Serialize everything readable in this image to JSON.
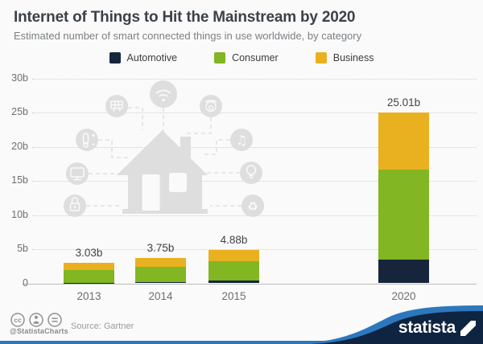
{
  "header": {
    "title": "Internet of Things to Hit the Mainstream by 2020",
    "subtitle": "Estimated number of smart connected things in use worldwide, by category"
  },
  "legend": {
    "items": [
      {
        "label": "Automotive",
        "color": "#16253c"
      },
      {
        "label": "Consumer",
        "color": "#82b622"
      },
      {
        "label": "Business",
        "color": "#e9b120"
      }
    ]
  },
  "chart_data": {
    "type": "bar",
    "stacked": true,
    "title": "Internet of Things to Hit the Mainstream by 2020",
    "unit": "billions of connected things",
    "categories": [
      "2013",
      "2014",
      "2015",
      "2020"
    ],
    "series": [
      {
        "name": "Automotive",
        "color": "#16253c",
        "values": [
          0.1,
          0.19,
          0.37,
          3.51
        ]
      },
      {
        "name": "Consumer",
        "color": "#82b622",
        "values": [
          1.84,
          2.24,
          2.87,
          13.17
        ]
      },
      {
        "name": "Business",
        "color": "#e9b120",
        "values": [
          1.09,
          1.32,
          1.64,
          8.33
        ]
      }
    ],
    "totals": [
      3.03,
      3.75,
      4.88,
      25.01
    ],
    "total_labels": [
      "3.03b",
      "3.75b",
      "4.88b",
      "25.01b"
    ],
    "y_ticks": [
      {
        "value": 30,
        "label": "30b"
      },
      {
        "value": 25,
        "label": "25b"
      },
      {
        "value": 20,
        "label": "20b"
      },
      {
        "value": 15,
        "label": "15b"
      },
      {
        "value": 10,
        "label": "10b"
      },
      {
        "value": 5,
        "label": "5b"
      },
      {
        "value": 0,
        "label": "0"
      }
    ],
    "ylim": [
      0,
      30
    ],
    "grid": "horizontal dotted",
    "legend_position": "top center",
    "xlabel": "",
    "ylabel": ""
  },
  "watermark": {
    "theme": "smart-home",
    "icons": [
      "solar-panel",
      "wifi",
      "security-camera",
      "thermometer",
      "music-note",
      "monitor",
      "light-bulb",
      "lock",
      "recycle"
    ]
  },
  "footer": {
    "license_icons": [
      "cc",
      "attribution",
      "no-derivatives"
    ],
    "handle": "@StatistaCharts",
    "source": "Source: Gartner",
    "brand": "statista",
    "accent_blue": "#2d77bd",
    "brand_navy": "#0e2440"
  }
}
